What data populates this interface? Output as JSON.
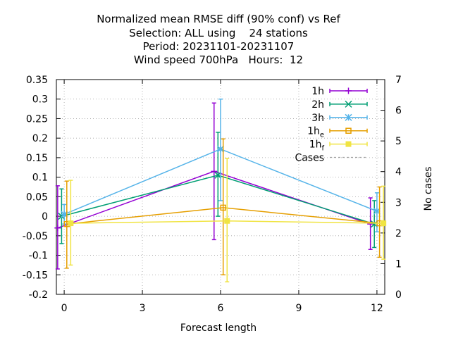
{
  "title_lines": [
    "Normalized mean RMSE diff (90% conf) vs Ref",
    "Selection: ALL using    24 stations",
    "Period: 20231101-20231107",
    "Wind speed 700hPa   Hours:  12"
  ],
  "chart_data": {
    "type": "line",
    "xlabel": "Forecast length",
    "ylabel": "",
    "y2label": "No cases",
    "xlim": [
      -0.3,
      12.3
    ],
    "ylim": [
      -0.2,
      0.35
    ],
    "y2lim": [
      0,
      7
    ],
    "xticks": [
      0,
      3,
      6,
      9,
      12
    ],
    "yticks": [
      -0.2,
      -0.15,
      -0.1,
      -0.05,
      0,
      0.05,
      0.1,
      0.15,
      0.2,
      0.25,
      0.3,
      0.35
    ],
    "y2ticks": [
      0,
      1,
      2,
      3,
      4,
      5,
      6,
      7
    ],
    "grid": true,
    "legend_position": "top-right",
    "series": [
      {
        "label": "1h",
        "color": "#9400d3",
        "marker": "plus",
        "x": [
          -0.25,
          5.75,
          11.75
        ],
        "y": [
          -0.03,
          0.115,
          -0.02
        ],
        "err_low": [
          -0.135,
          -0.06,
          -0.085
        ],
        "err_high": [
          0.078,
          0.29,
          0.047
        ]
      },
      {
        "label": "2h",
        "color": "#009e73",
        "marker": "cross",
        "x": [
          -0.1,
          5.9,
          11.9
        ],
        "y": [
          0.0,
          0.105,
          -0.02
        ],
        "err_low": [
          -0.07,
          0.0,
          -0.08
        ],
        "err_high": [
          0.07,
          0.215,
          0.04
        ]
      },
      {
        "label": "3h",
        "color": "#56b4e9",
        "marker": "star",
        "x": [
          0.0,
          6.0,
          12.0
        ],
        "y": [
          0.005,
          0.172,
          0.013
        ],
        "err_low": [
          -0.02,
          0.04,
          -0.04
        ],
        "err_high": [
          0.03,
          0.3,
          0.06
        ]
      },
      {
        "label": "1h",
        "sub": "e",
        "color": "#e69f00",
        "marker": "square",
        "x": [
          0.1,
          6.1,
          12.1
        ],
        "y": [
          -0.02,
          0.022,
          -0.018
        ],
        "err_low": [
          -0.133,
          -0.15,
          -0.105
        ],
        "err_high": [
          0.09,
          0.198,
          0.075
        ]
      },
      {
        "label": "1h",
        "sub": "f",
        "color": "#f0e442",
        "marker": "filled-square",
        "x": [
          0.25,
          6.25,
          12.25
        ],
        "y": [
          -0.018,
          -0.012,
          -0.018
        ],
        "err_low": [
          -0.125,
          -0.168,
          -0.11
        ],
        "err_high": [
          0.092,
          0.148,
          0.077
        ]
      }
    ],
    "cases": {
      "label": "Cases",
      "color": "#a0a0a0",
      "dash": "dashed",
      "x": [
        0,
        6,
        12
      ],
      "y": []
    }
  }
}
